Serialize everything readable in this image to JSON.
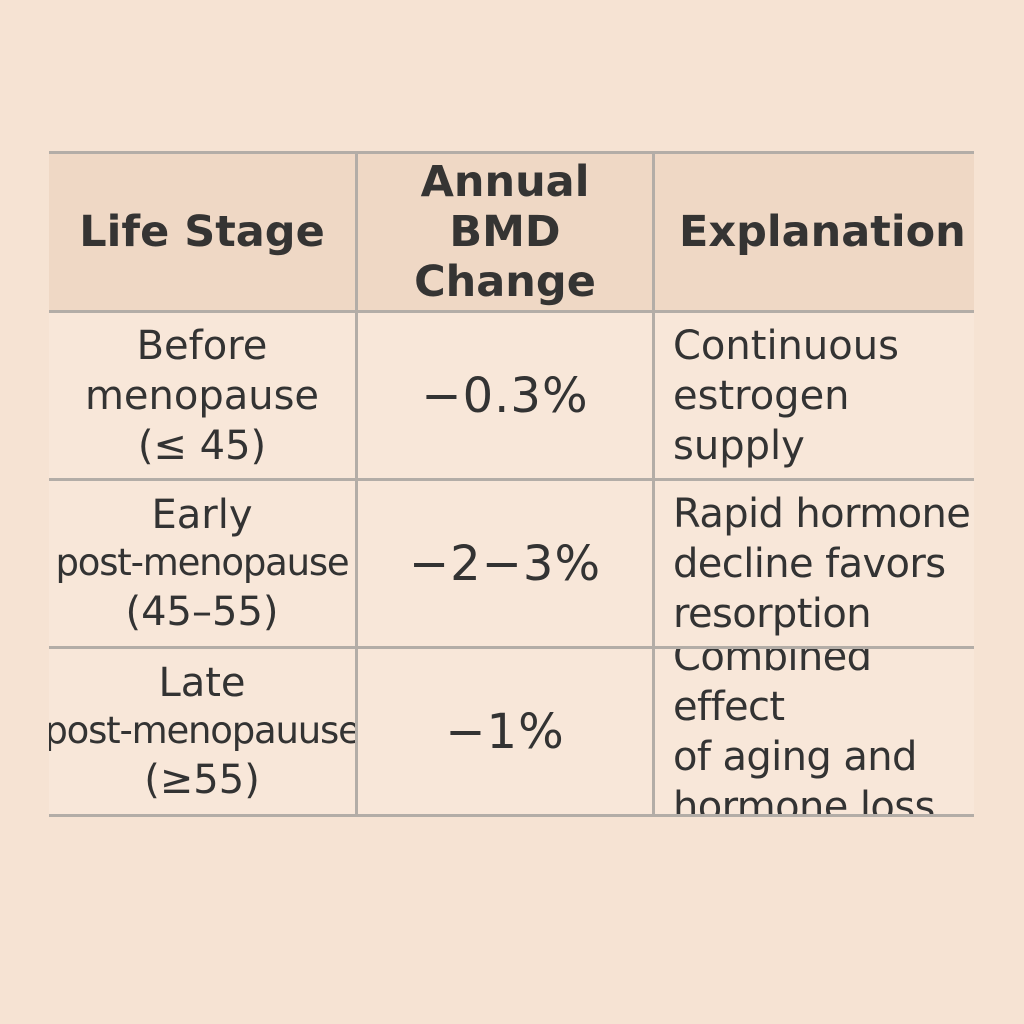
{
  "table": {
    "headers": {
      "life_stage": "Life Stage",
      "annual_bmd_change": "Annual\nBMD Change",
      "explanation": "Explanation"
    },
    "rows": [
      {
        "stage_line1": "Before",
        "stage_line2": "menopause",
        "stage_line3": "(≤ 45)",
        "change": "−0.3%",
        "explanation": "Continuous\nestrogen supply"
      },
      {
        "stage_line1": "Early",
        "stage_line2": "post-menopause",
        "stage_line3": "(45–55)",
        "change": "−2−3%",
        "explanation": "Rapid hormone\ndecline favors\nresorption"
      },
      {
        "stage_line1": "Late",
        "stage_line2": "post-menopauuse",
        "stage_line3": "(≥55)",
        "change": "−1%",
        "explanation": "Combined effect\nof aging and\nhormone loss"
      }
    ]
  }
}
